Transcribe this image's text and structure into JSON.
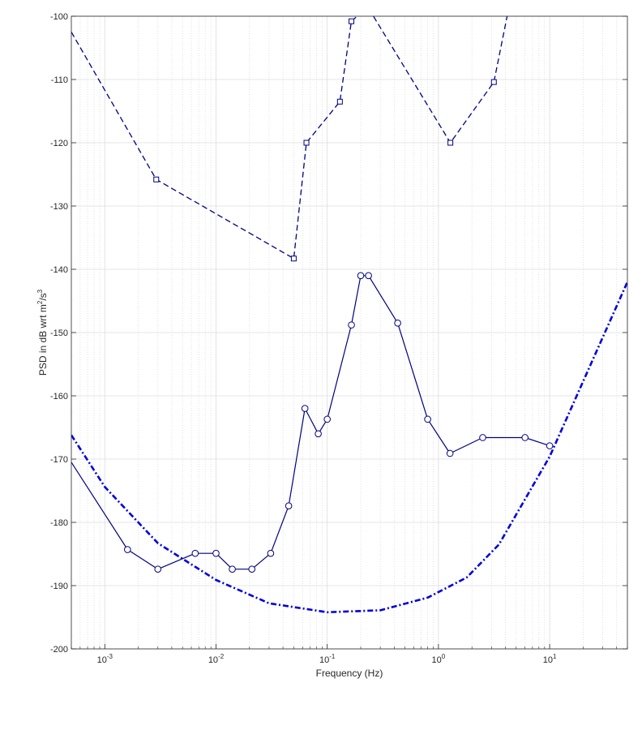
{
  "chart_data": {
    "type": "line",
    "x_scale": "log",
    "xlim": [
      0.0005,
      50
    ],
    "ylim": [
      -200,
      -100
    ],
    "grid": true,
    "xlabel": "Frequency (Hz)",
    "ylabel": {
      "prefix": "PSD in dB wrt m",
      "sup1": "2",
      "mid": "/s",
      "sup2": "3"
    },
    "xticks": [
      {
        "base": "10",
        "exp": "-3",
        "value": 0.001
      },
      {
        "base": "10",
        "exp": "-2",
        "value": 0.01
      },
      {
        "base": "10",
        "exp": "-1",
        "value": 0.1
      },
      {
        "base": "10",
        "exp": "0",
        "value": 1
      },
      {
        "base": "10",
        "exp": "1",
        "value": 10
      }
    ],
    "yticks": [
      "-100",
      "-110",
      "-120",
      "-130",
      "-140",
      "-150",
      "-160",
      "-170",
      "-180",
      "-190",
      "-200"
    ],
    "series": [
      {
        "style": "dashed-square",
        "color": "#000080",
        "x": [
          0.0005,
          0.0029,
          0.05,
          0.065,
          0.13,
          0.165,
          0.2,
          0.25,
          1.28,
          3.15,
          4.2
        ],
        "y": [
          -102.5,
          -125.8,
          -138.3,
          -120.0,
          -113.5,
          -100.8,
          -99.5,
          -99.5,
          -120.0,
          -110.4,
          -99.5
        ],
        "markers": [
          false,
          true,
          true,
          true,
          true,
          true,
          false,
          false,
          true,
          true,
          false
        ]
      },
      {
        "style": "solid-circle",
        "color": "#000080",
        "x": [
          0.0005,
          0.0016,
          0.003,
          0.0065,
          0.01,
          0.014,
          0.021,
          0.031,
          0.045,
          0.063,
          0.083,
          0.1,
          0.165,
          0.2,
          0.235,
          0.43,
          0.8,
          1.27,
          2.5,
          6.0,
          10.0
        ],
        "y": [
          -170.5,
          -184.3,
          -187.4,
          -184.9,
          -184.9,
          -187.4,
          -187.4,
          -184.9,
          -177.4,
          -162.0,
          -166.0,
          -163.7,
          -148.8,
          -141.0,
          -141.0,
          -148.5,
          -163.7,
          -169.1,
          -166.6,
          -166.6,
          -167.9
        ],
        "markers": [
          false,
          true,
          true,
          true,
          true,
          true,
          true,
          true,
          true,
          true,
          true,
          true,
          true,
          true,
          true,
          true,
          true,
          true,
          true,
          true,
          true
        ]
      },
      {
        "style": "dashdot-thick",
        "color": "#0000dd",
        "x": [
          0.0005,
          0.001,
          0.003,
          0.01,
          0.03,
          0.1,
          0.3,
          0.8,
          1.8,
          3.5,
          10,
          50
        ],
        "y": [
          -166.2,
          -174.4,
          -183.3,
          -189.1,
          -192.8,
          -194.2,
          -193.9,
          -191.9,
          -188.7,
          -183.5,
          -169.6,
          -142.0
        ]
      }
    ]
  }
}
